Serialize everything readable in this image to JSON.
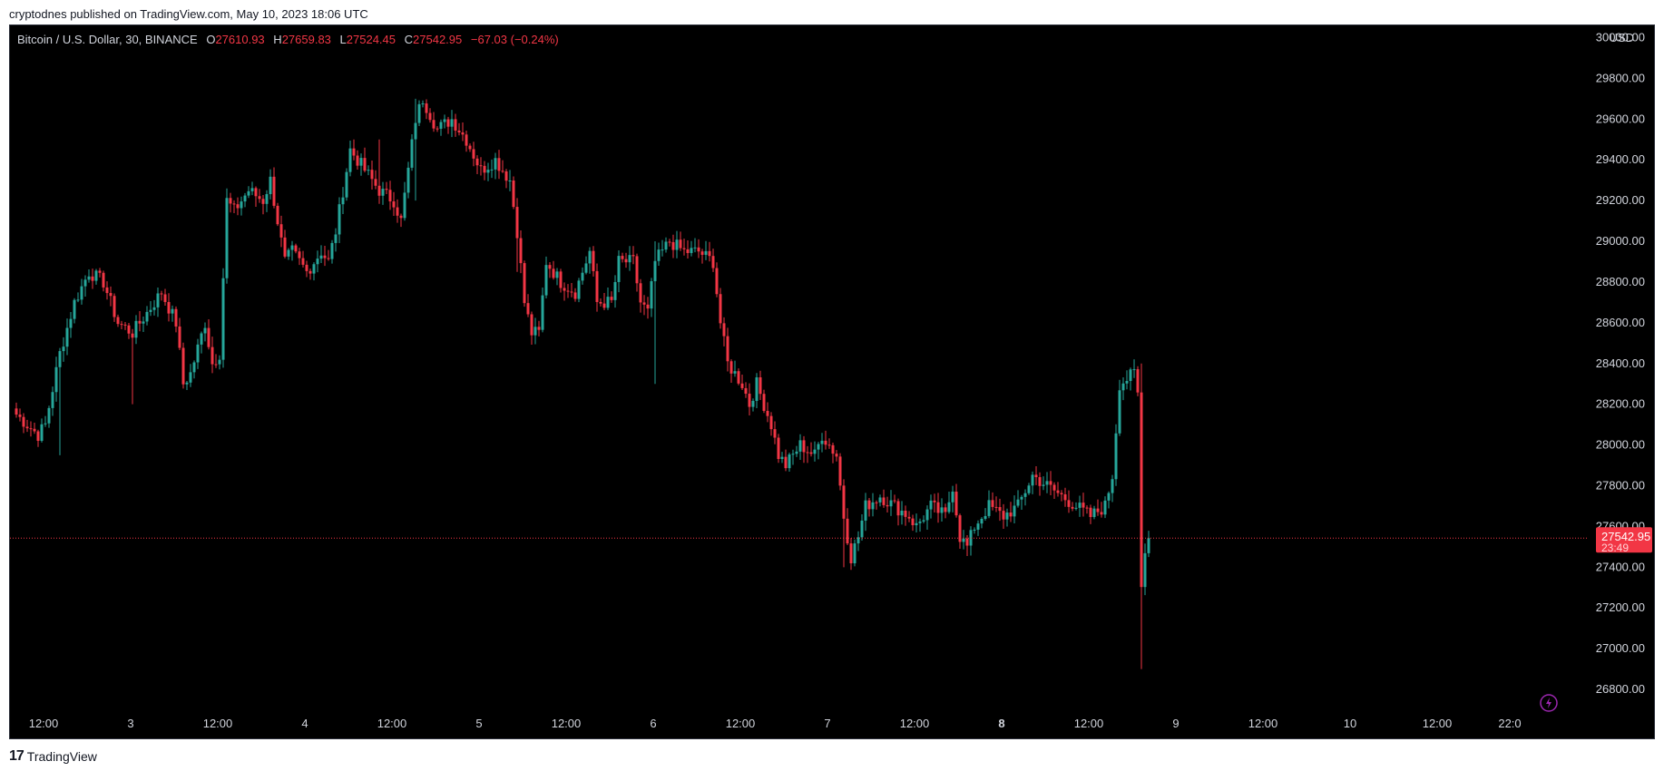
{
  "header": {
    "published": "cryptodnes published on TradingView.com, May 10, 2023 18:06 UTC"
  },
  "legend": {
    "symbol": "Bitcoin / U.S. Dollar, 30, BINANCE",
    "o_label": "O",
    "o": "27610.93",
    "h_label": "H",
    "h": "27659.83",
    "l_label": "L",
    "l": "27524.45",
    "c_label": "C",
    "c": "27542.95",
    "change": "−67.03 (−0.24%)"
  },
  "currency": "USD",
  "price_tag": {
    "price": "27542.95",
    "countdown": "23:49"
  },
  "footer": {
    "brand": "TradingView",
    "logo_text": "17"
  },
  "colors": {
    "up": "#26a69a",
    "down": "#f23645",
    "bg": "#000000",
    "text": "#d1d4dc",
    "icon": "#9c27b0"
  },
  "icons": {
    "lightning": "lightning-icon",
    "logo": "tradingview-logo-icon"
  },
  "chart_data": {
    "type": "candlestick",
    "interval": "30",
    "y_ticks": [
      "30000.00",
      "29800.00",
      "29600.00",
      "29400.00",
      "29200.00",
      "29000.00",
      "28800.00",
      "28600.00",
      "28400.00",
      "28200.00",
      "28000.00",
      "27800.00",
      "27600.00",
      "27400.00",
      "27200.00",
      "27000.00",
      "26800.00"
    ],
    "ylim": [
      26640,
      30060
    ],
    "x_ticks": [
      {
        "label": "12:00",
        "i": 0
      },
      {
        "label": "3",
        "i": 24
      },
      {
        "label": "12:00",
        "i": 48
      },
      {
        "label": "4",
        "i": 72
      },
      {
        "label": "12:00",
        "i": 96
      },
      {
        "label": "5",
        "i": 120
      },
      {
        "label": "12:00",
        "i": 144
      },
      {
        "label": "6",
        "i": 168
      },
      {
        "label": "12:00",
        "i": 192
      },
      {
        "label": "7",
        "i": 216
      },
      {
        "label": "12:00",
        "i": 240
      },
      {
        "label": "8",
        "i": 264,
        "bold": true
      },
      {
        "label": "12:00",
        "i": 288
      },
      {
        "label": "9",
        "i": 312
      },
      {
        "label": "12:00",
        "i": 336
      },
      {
        "label": "10",
        "i": 360
      },
      {
        "label": "12:00",
        "i": 384
      },
      {
        "label": "22:0",
        "i": 404
      }
    ],
    "last_price": 27542.95,
    "anchors": [
      [
        0,
        28150
      ],
      [
        6,
        28050
      ],
      [
        8,
        28100
      ],
      [
        12,
        28450
      ],
      [
        16,
        28700
      ],
      [
        20,
        28850
      ],
      [
        24,
        28800
      ],
      [
        28,
        28600
      ],
      [
        32,
        28550
      ],
      [
        36,
        28650
      ],
      [
        40,
        28750
      ],
      [
        44,
        28600
      ],
      [
        46,
        28300
      ],
      [
        48,
        28350
      ],
      [
        52,
        28600
      ],
      [
        54,
        28400
      ],
      [
        56,
        28450
      ],
      [
        58,
        29200
      ],
      [
        60,
        29150
      ],
      [
        64,
        29250
      ],
      [
        68,
        29200
      ],
      [
        70,
        29300
      ],
      [
        72,
        29100
      ],
      [
        74,
        28900
      ],
      [
        76,
        28950
      ],
      [
        80,
        28850
      ],
      [
        84,
        28950
      ],
      [
        86,
        28900
      ],
      [
        88,
        29050
      ],
      [
        92,
        29450
      ],
      [
        96,
        29350
      ],
      [
        100,
        29250
      ],
      [
        104,
        29200
      ],
      [
        106,
        29100
      ],
      [
        110,
        29600
      ],
      [
        112,
        29700
      ],
      [
        116,
        29550
      ],
      [
        120,
        29600
      ],
      [
        124,
        29500
      ],
      [
        128,
        29350
      ],
      [
        132,
        29400
      ],
      [
        136,
        29300
      ],
      [
        138,
        29050
      ],
      [
        140,
        28700
      ],
      [
        142,
        28550
      ],
      [
        144,
        28550
      ],
      [
        146,
        28900
      ],
      [
        150,
        28800
      ],
      [
        154,
        28750
      ],
      [
        156,
        28850
      ],
      [
        158,
        28950
      ],
      [
        160,
        28700
      ],
      [
        164,
        28700
      ],
      [
        166,
        28900
      ],
      [
        170,
        28900
      ],
      [
        172,
        28700
      ],
      [
        174,
        28650
      ],
      [
        176,
        28900
      ],
      [
        180,
        29000
      ],
      [
        184,
        28950
      ],
      [
        188,
        28950
      ],
      [
        192,
        28900
      ],
      [
        194,
        28600
      ],
      [
        196,
        28400
      ],
      [
        200,
        28300
      ],
      [
        202,
        28200
      ],
      [
        204,
        28300
      ],
      [
        206,
        28200
      ],
      [
        208,
        28100
      ],
      [
        210,
        27950
      ],
      [
        212,
        27900
      ],
      [
        216,
        28000
      ],
      [
        220,
        27950
      ],
      [
        222,
        28050
      ],
      [
        226,
        27950
      ],
      [
        228,
        27650
      ],
      [
        230,
        27450
      ],
      [
        232,
        27550
      ],
      [
        234,
        27700
      ],
      [
        238,
        27750
      ],
      [
        242,
        27700
      ],
      [
        246,
        27650
      ],
      [
        248,
        27600
      ],
      [
        252,
        27700
      ],
      [
        256,
        27650
      ],
      [
        258,
        27800
      ],
      [
        260,
        27550
      ],
      [
        262,
        27500
      ],
      [
        264,
        27600
      ],
      [
        268,
        27700
      ],
      [
        272,
        27650
      ],
      [
        276,
        27700
      ],
      [
        280,
        27850
      ],
      [
        284,
        27800
      ],
      [
        288,
        27750
      ],
      [
        292,
        27700
      ],
      [
        296,
        27650
      ],
      [
        300,
        27700
      ],
      [
        302,
        27850
      ],
      [
        304,
        28300
      ],
      [
        308,
        28350
      ],
      [
        309,
        28250
      ],
      [
        310,
        27300
      ],
      [
        311,
        27500
      ],
      [
        312,
        27542.95
      ]
    ],
    "spikes": [
      [
        228,
        27700,
        27400
      ],
      [
        310,
        28400,
        26900
      ],
      [
        176,
        29000,
        28300
      ],
      [
        138,
        29150,
        28850
      ],
      [
        110,
        29700,
        29200
      ],
      [
        100,
        29500,
        29250
      ],
      [
        32,
        28300,
        28200
      ],
      [
        12,
        28200,
        27950
      ]
    ]
  }
}
